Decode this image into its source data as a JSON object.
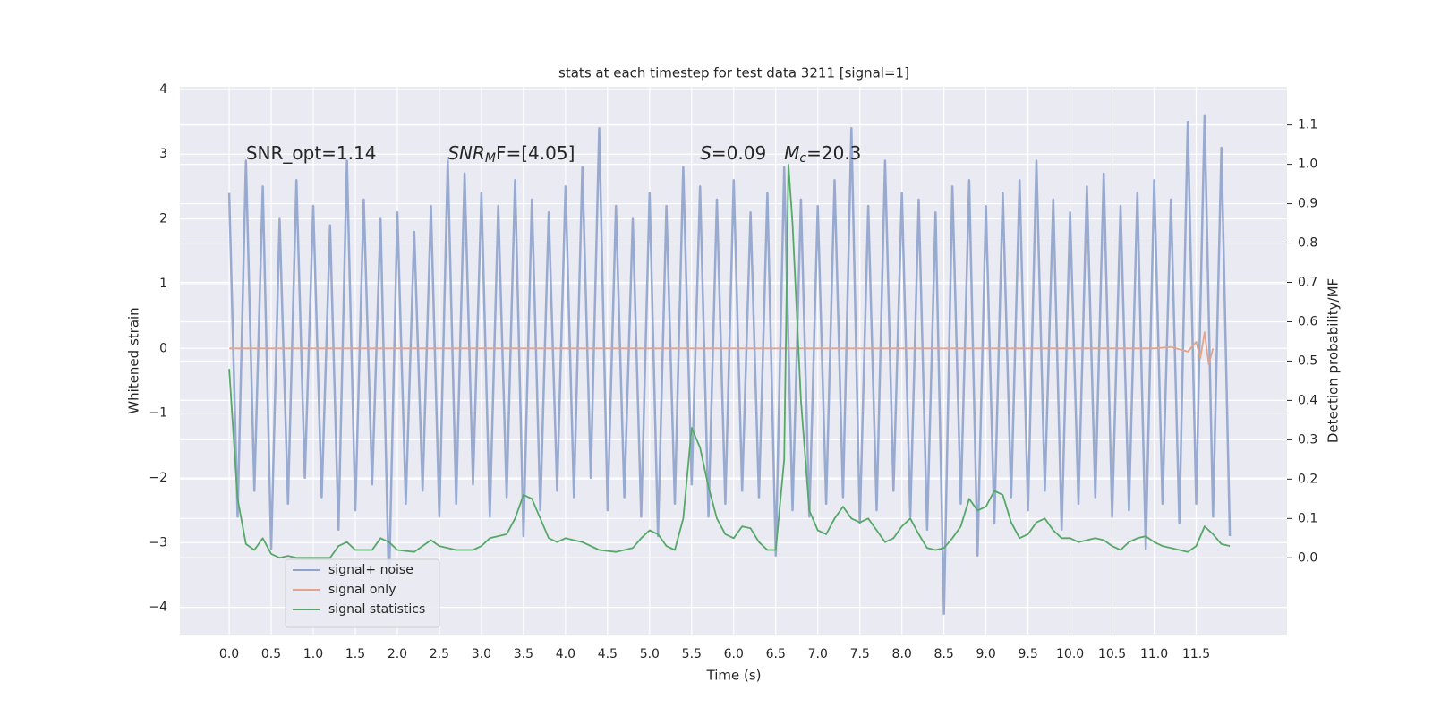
{
  "chart_data": {
    "type": "line",
    "title": "stats at each timestep for test data 3211 [signal=1]",
    "x_label": "Time (s)",
    "y_label": "Whitened strain",
    "y2_label": "Detection probability/MF",
    "grid": true,
    "legend": "lower left",
    "xlim": [
      -0.586,
      12.58
    ],
    "ylim": [
      -4.42,
      4.04
    ],
    "y2lim": [
      -0.195,
      1.197
    ],
    "xticks": [
      {
        "value": 0,
        "label": "0.0"
      },
      0.5,
      {
        "value": 1,
        "label": "1.0"
      },
      1.5,
      {
        "value": 2,
        "label": "2.0"
      },
      2.5,
      {
        "value": 3,
        "label": "3.0"
      },
      3.5,
      {
        "value": 4,
        "label": "4.0"
      },
      4.5,
      {
        "value": 5,
        "label": "5.0"
      },
      5.5,
      {
        "value": 6,
        "label": "6.0"
      },
      6.5,
      {
        "value": 7,
        "label": "7.0"
      },
      7.5,
      {
        "value": 8,
        "label": "8.0"
      },
      8.5,
      {
        "value": 9,
        "label": "9.0"
      },
      9.5,
      {
        "value": 10,
        "label": "10.0"
      },
      10.5,
      {
        "value": 11,
        "label": "11.0"
      },
      11.5
    ],
    "yticks": [
      {
        "value": -4,
        "label": "−4"
      },
      {
        "value": -3,
        "label": "−3"
      },
      {
        "value": -2,
        "label": "−2"
      },
      {
        "value": -1,
        "label": "−1"
      },
      0,
      1,
      2,
      3,
      4
    ],
    "y2ticks": [
      {
        "value": 0,
        "label": "0.0"
      },
      0.1,
      0.2,
      0.3,
      0.4,
      0.5,
      0.6,
      0.7,
      0.8,
      0.9,
      {
        "value": 1,
        "label": "1.0"
      },
      1.1
    ],
    "annotations": [
      {
        "x": 0.2,
        "y": 3,
        "parts": [
          "SNR_opt=1.14"
        ]
      },
      {
        "x": 2.6,
        "y": 3,
        "parts": [
          "SNR",
          "M",
          "F=[4.05]"
        ]
      },
      {
        "x": 5.6,
        "y": 3,
        "parts": [
          "S",
          "=0.09"
        ]
      },
      {
        "x": 6.6,
        "y": 3,
        "parts": [
          "M",
          "c",
          "=20.3"
        ]
      }
    ],
    "series": [
      {
        "name": "signal+ noise",
        "color": "#8fa3cc",
        "axis": "y",
        "x": [
          0.0,
          0.1,
          0.2,
          0.3,
          0.4,
          0.5,
          0.6,
          0.7,
          0.8,
          0.9,
          1.0,
          1.1,
          1.2,
          1.3,
          1.4,
          1.5,
          1.6,
          1.7,
          1.8,
          1.9,
          2.0,
          2.1,
          2.2,
          2.3,
          2.4,
          2.5,
          2.6,
          2.7,
          2.8,
          2.9,
          3.0,
          3.1,
          3.2,
          3.3,
          3.4,
          3.5,
          3.6,
          3.7,
          3.8,
          3.9,
          4.0,
          4.1,
          4.2,
          4.3,
          4.4,
          4.5,
          4.6,
          4.7,
          4.8,
          4.9,
          5.0,
          5.1,
          5.2,
          5.3,
          5.4,
          5.5,
          5.6,
          5.7,
          5.8,
          5.9,
          6.0,
          6.1,
          6.2,
          6.3,
          6.4,
          6.5,
          6.6,
          6.7,
          6.8,
          6.9,
          7.0,
          7.1,
          7.2,
          7.3,
          7.4,
          7.5,
          7.6,
          7.7,
          7.8,
          7.9,
          8.0,
          8.1,
          8.2,
          8.3,
          8.4,
          8.5,
          8.6,
          8.7,
          8.8,
          8.9,
          9.0,
          9.1,
          9.2,
          9.3,
          9.4,
          9.5,
          9.6,
          9.7,
          9.8,
          9.9,
          10.0,
          10.1,
          10.2,
          10.3,
          10.4,
          10.5,
          10.6,
          10.7,
          10.8,
          10.9,
          11.0,
          11.1,
          11.2,
          11.3,
          11.4,
          11.5,
          11.6,
          11.7,
          11.8,
          11.9
        ],
        "values": [
          2.4,
          -2.6,
          2.9,
          -2.2,
          2.5,
          -3.1,
          2.0,
          -2.4,
          2.6,
          -2.0,
          2.2,
          -2.3,
          1.9,
          -2.8,
          2.9,
          -2.5,
          2.3,
          -2.1,
          2.0,
          -3.7,
          2.1,
          -2.4,
          1.8,
          -2.2,
          2.2,
          -2.6,
          2.9,
          -2.4,
          2.7,
          -2.1,
          2.4,
          -2.6,
          2.2,
          -2.3,
          2.6,
          -2.9,
          2.3,
          -2.5,
          2.1,
          -2.2,
          2.5,
          -2.3,
          2.8,
          -2.0,
          3.4,
          -2.5,
          2.2,
          -2.3,
          2.0,
          -2.6,
          2.4,
          -2.9,
          2.2,
          -2.4,
          2.8,
          -2.1,
          2.5,
          -2.6,
          2.3,
          -2.4,
          2.6,
          -2.2,
          2.1,
          -2.3,
          2.4,
          -3.2,
          2.8,
          -2.5,
          2.3,
          -2.6,
          2.2,
          -2.4,
          2.6,
          -2.3,
          3.4,
          -2.7,
          2.2,
          -2.5,
          2.9,
          -2.2,
          2.4,
          -2.6,
          2.3,
          -2.8,
          2.1,
          -4.1,
          2.5,
          -2.4,
          2.6,
          -3.2,
          2.2,
          -2.7,
          2.4,
          -2.3,
          2.6,
          -2.5,
          2.9,
          -2.2,
          2.3,
          -2.8,
          2.1,
          -2.4,
          2.5,
          -2.3,
          2.7,
          -2.6,
          2.2,
          -2.5,
          2.4,
          -3.1,
          2.6,
          -2.4,
          2.3,
          -2.7,
          3.5,
          -2.4,
          3.6,
          -2.6,
          3.1,
          -2.9
        ]
      },
      {
        "name": "signal only",
        "color": "#e0a58c",
        "axis": "y",
        "x": [
          0,
          11.0,
          11.2,
          11.4,
          11.5,
          11.55,
          11.6,
          11.65,
          11.7
        ],
        "values": [
          0,
          0,
          0.02,
          -0.05,
          0.1,
          -0.15,
          0.25,
          -0.25,
          0
        ]
      },
      {
        "name": "signal statistics",
        "color": "#55a868",
        "axis": "y2",
        "x": [
          0.0,
          0.1,
          0.2,
          0.3,
          0.4,
          0.5,
          0.6,
          0.7,
          0.8,
          1.0,
          1.2,
          1.3,
          1.4,
          1.5,
          1.7,
          1.8,
          1.9,
          2.0,
          2.2,
          2.3,
          2.4,
          2.5,
          2.7,
          2.9,
          3.0,
          3.1,
          3.3,
          3.4,
          3.5,
          3.6,
          3.7,
          3.8,
          3.9,
          4.0,
          4.2,
          4.4,
          4.6,
          4.8,
          4.9,
          5.0,
          5.1,
          5.2,
          5.3,
          5.4,
          5.5,
          5.6,
          5.7,
          5.8,
          5.9,
          6.0,
          6.1,
          6.2,
          6.3,
          6.4,
          6.5,
          6.6,
          6.65,
          6.7,
          6.8,
          6.9,
          7.0,
          7.1,
          7.2,
          7.3,
          7.4,
          7.5,
          7.6,
          7.7,
          7.8,
          7.9,
          8.0,
          8.1,
          8.2,
          8.3,
          8.4,
          8.5,
          8.6,
          8.7,
          8.8,
          8.9,
          9.0,
          9.1,
          9.2,
          9.3,
          9.4,
          9.5,
          9.6,
          9.7,
          9.8,
          9.9,
          10.0,
          10.1,
          10.2,
          10.3,
          10.4,
          10.5,
          10.6,
          10.7,
          10.8,
          10.9,
          11.0,
          11.1,
          11.2,
          11.3,
          11.4,
          11.5,
          11.6,
          11.7,
          11.8,
          11.9
        ],
        "values": [
          0.48,
          0.15,
          0.035,
          0.02,
          0.05,
          0.01,
          0.0,
          0.005,
          0.0,
          0.0,
          0.0,
          0.03,
          0.04,
          0.02,
          0.02,
          0.05,
          0.04,
          0.02,
          0.015,
          0.03,
          0.045,
          0.03,
          0.02,
          0.02,
          0.03,
          0.05,
          0.06,
          0.1,
          0.16,
          0.15,
          0.1,
          0.05,
          0.04,
          0.05,
          0.04,
          0.02,
          0.015,
          0.025,
          0.05,
          0.07,
          0.06,
          0.03,
          0.02,
          0.1,
          0.33,
          0.28,
          0.18,
          0.1,
          0.06,
          0.05,
          0.08,
          0.075,
          0.04,
          0.02,
          0.02,
          0.25,
          1.0,
          0.85,
          0.4,
          0.12,
          0.07,
          0.06,
          0.1,
          0.13,
          0.1,
          0.09,
          0.1,
          0.07,
          0.04,
          0.05,
          0.08,
          0.1,
          0.06,
          0.025,
          0.02,
          0.025,
          0.05,
          0.08,
          0.15,
          0.12,
          0.13,
          0.17,
          0.16,
          0.09,
          0.05,
          0.06,
          0.09,
          0.1,
          0.07,
          0.05,
          0.05,
          0.04,
          0.045,
          0.05,
          0.045,
          0.03,
          0.02,
          0.04,
          0.05,
          0.055,
          0.04,
          0.03,
          0.025,
          0.02,
          0.015,
          0.03,
          0.08,
          0.06,
          0.035,
          0.03
        ]
      }
    ]
  }
}
